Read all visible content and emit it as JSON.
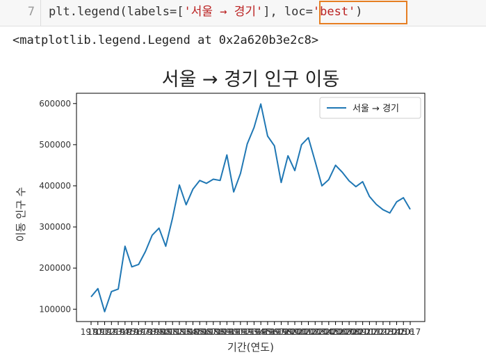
{
  "input_cell": {
    "line_number": "7",
    "code_parts": [
      "plt.legend(labels=[",
      "'서울 → 경기'",
      "], ",
      "loc=",
      "'best'",
      ")"
    ]
  },
  "output_cell": {
    "text": "<matplotlib.legend.Legend at 0x2a620b3e2c8>"
  },
  "chart_data": {
    "type": "line",
    "title": "서울 → 경기 인구 이동",
    "xlabel": "기간(연도)",
    "ylabel": "이동 인구 수",
    "legend_position": "top-right",
    "grid": false,
    "ylim": [
      70000,
      625000
    ],
    "y_ticks": [
      100000,
      200000,
      300000,
      400000,
      500000,
      600000
    ],
    "y_tick_labels": [
      "100000",
      "200000",
      "300000",
      "400000",
      "500000",
      "600000"
    ],
    "x_tick_labels": [
      "1970",
      "1971",
      "1972",
      "1973",
      "1974",
      "1975",
      "1976",
      "1977",
      "1978",
      "1979",
      "1980",
      "1981",
      "1982",
      "1983",
      "1984",
      "1985",
      "1986",
      "1987",
      "1988",
      "1989",
      "1990",
      "1991",
      "1992",
      "1993",
      "1994",
      "1995",
      "1996",
      "1997",
      "1998",
      "1999",
      "2000",
      "2001",
      "2002",
      "2003",
      "2004",
      "2005",
      "2006",
      "2007",
      "2008",
      "2009",
      "2010",
      "2011",
      "2012",
      "2013",
      "2014",
      "2015",
      "2016",
      "2017"
    ],
    "series": [
      {
        "name": "서울 → 경기",
        "color": "#1f77b4",
        "values": [
          130000,
          150000,
          94000,
          143000,
          149000,
          253000,
          203000,
          209000,
          240000,
          280000,
          297000,
          253000,
          322000,
          402000,
          354000,
          392000,
          413000,
          406000,
          416000,
          413000,
          475000,
          385000,
          430000,
          502000,
          542000,
          599000,
          521000,
          497000,
          408000,
          473000,
          437000,
          500000,
          517000,
          459000,
          400000,
          415000,
          450000,
          433000,
          412000,
          398000,
          410000,
          374000,
          355000,
          342000,
          334000,
          361000,
          371000,
          343000
        ]
      }
    ]
  }
}
